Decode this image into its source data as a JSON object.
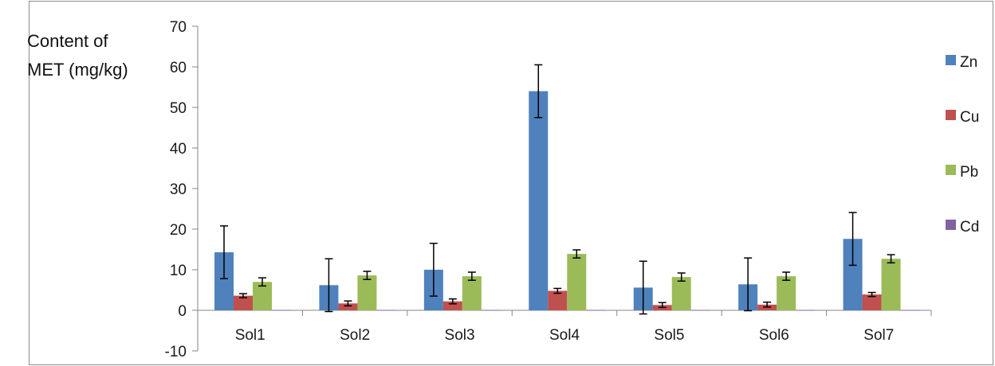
{
  "chart_data": {
    "type": "bar",
    "ylabel_lines": [
      "Content of",
      "MET (mg/kg)"
    ],
    "categories": [
      "Sol1",
      "Sol2",
      "Sol3",
      "Sol4",
      "Sol5",
      "Sol6",
      "Sol7"
    ],
    "ylim": [
      -10,
      70
    ],
    "yticks": [
      -10,
      0,
      10,
      20,
      30,
      40,
      50,
      60,
      70
    ],
    "grid": false,
    "legend_position": "right",
    "series": [
      {
        "name": "Zn",
        "color": "#4f81bd",
        "values": [
          14.3,
          6.2,
          10.0,
          54.0,
          5.6,
          6.4,
          17.6
        ],
        "errors": [
          6.5,
          6.5,
          6.5,
          6.5,
          6.5,
          6.5,
          6.5
        ]
      },
      {
        "name": "Cu",
        "color": "#c0504d",
        "values": [
          3.6,
          1.7,
          2.2,
          4.8,
          1.3,
          1.4,
          3.9
        ],
        "errors": [
          0.5,
          0.6,
          0.6,
          0.6,
          0.6,
          0.6,
          0.5
        ]
      },
      {
        "name": "Pb",
        "color": "#9bbb59",
        "values": [
          7.0,
          8.6,
          8.4,
          13.9,
          8.2,
          8.4,
          12.7
        ],
        "errors": [
          1.0,
          1.0,
          1.0,
          1.0,
          1.0,
          1.0,
          1.0
        ]
      },
      {
        "name": "Cd",
        "color": "#8064a2",
        "values": [
          0.1,
          0.1,
          0.1,
          0.1,
          0.1,
          0.1,
          0.1
        ],
        "errors": [
          0,
          0,
          0,
          0,
          0,
          0,
          0
        ]
      }
    ]
  }
}
